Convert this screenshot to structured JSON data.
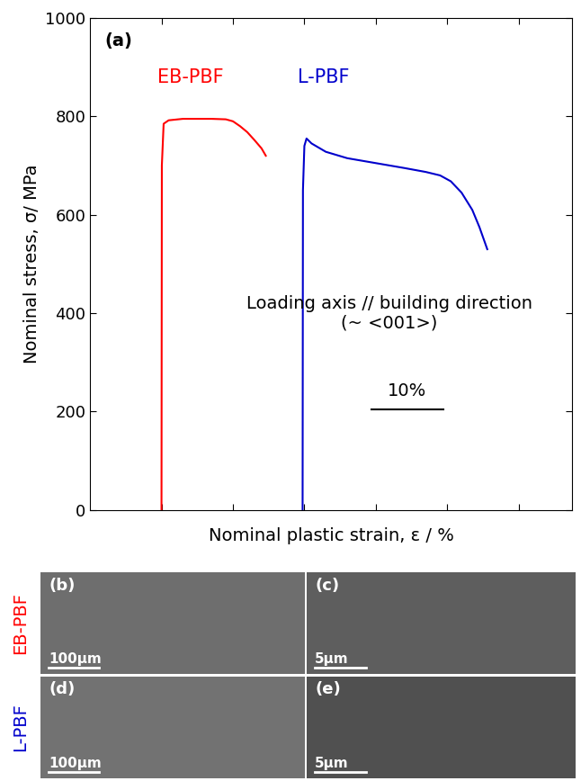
{
  "chart_data": {
    "type": "line",
    "panel_label": "(a)",
    "x_label": "Nominal plastic strain, ε / %",
    "y_label": "Nominal stress, σ/ MPa",
    "annotation": "Loading axis // building direction\n(~ <001>)",
    "scale_bar": {
      "value": 10,
      "label": "10%"
    },
    "xlim": [
      0,
      67.5
    ],
    "xticks": [
      10,
      20,
      30,
      40,
      50,
      60
    ],
    "ylim": [
      0,
      1000
    ],
    "yticks": [
      0,
      200,
      400,
      600,
      800,
      1000
    ],
    "tick_labels": "y",
    "grid": false,
    "series": [
      {
        "name": "EB-PBF",
        "color": "#ff0000",
        "x": [
          10,
          10.05,
          10.3,
          11,
          13,
          15,
          17,
          19,
          20,
          21,
          22,
          23,
          24,
          24.6
        ],
        "values": [
          0,
          700,
          785,
          792,
          795,
          795,
          795,
          794,
          790,
          780,
          768,
          752,
          735,
          720
        ]
      },
      {
        "name": "L-PBF",
        "color": "#0000cc",
        "x": [
          29.75,
          29.8,
          30.0,
          30.3,
          31,
          33,
          36,
          40,
          44,
          47,
          49,
          50.5,
          52,
          53.5,
          54.5,
          55.6
        ],
        "values": [
          0,
          650,
          740,
          755,
          745,
          728,
          715,
          705,
          695,
          687,
          680,
          668,
          645,
          610,
          575,
          530
        ]
      }
    ]
  },
  "micrographs": [
    {
      "panel": "(b)",
      "row": "EB-PBF",
      "scale_bar": "100μm"
    },
    {
      "panel": "(c)",
      "row": "EB-PBF",
      "scale_bar": "5μm"
    },
    {
      "panel": "(d)",
      "row": "L-PBF",
      "scale_bar": "100μm"
    },
    {
      "panel": "(e)",
      "row": "L-PBF",
      "scale_bar": "5μm"
    }
  ]
}
